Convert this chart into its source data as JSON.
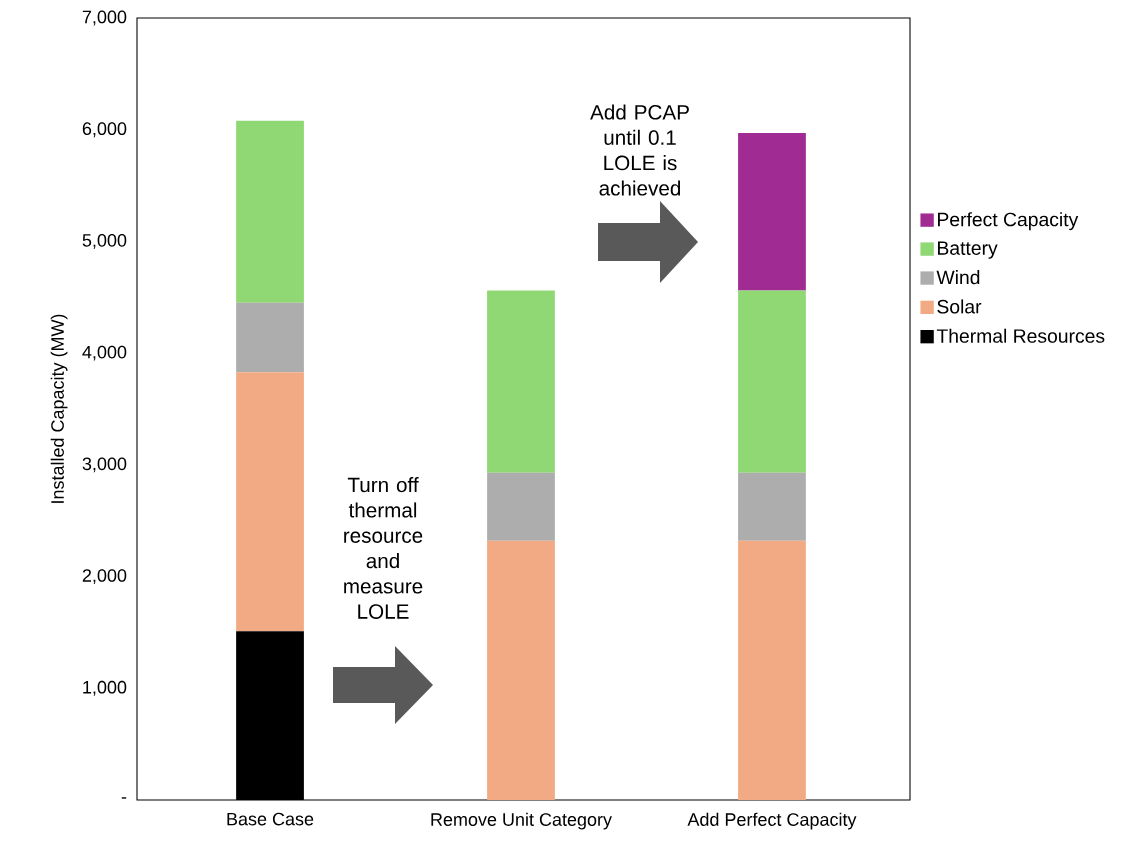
{
  "chart_data": {
    "type": "bar",
    "stacked": true,
    "ylabel": "Installed Capacity (MW)",
    "categories": [
      "Base Case",
      "Remove Unit Category",
      "Add Perfect Capacity"
    ],
    "series": [
      {
        "name": "Thermal Resources",
        "color": "#000000",
        "values": [
          1510,
          0,
          0
        ]
      },
      {
        "name": "Solar",
        "color": "#f2aa84",
        "values": [
          2320,
          2320,
          2320
        ]
      },
      {
        "name": "Wind",
        "color": "#adadad",
        "values": [
          620,
          610,
          610
        ]
      },
      {
        "name": "Battery",
        "color": "#8fd874",
        "values": [
          1630,
          1630,
          1630
        ]
      },
      {
        "name": "Perfect Capacity",
        "color": "#a02b93",
        "values": [
          0,
          0,
          1410
        ]
      }
    ],
    "ylim": [
      0,
      7000
    ],
    "yticks": [
      {
        "value": 0,
        "label": "-"
      },
      {
        "value": 1000,
        "label": "1,000"
      },
      {
        "value": 2000,
        "label": "2,000"
      },
      {
        "value": 3000,
        "label": "3,000"
      },
      {
        "value": 4000,
        "label": "4,000"
      },
      {
        "value": 5000,
        "label": "5,000"
      },
      {
        "value": 6000,
        "label": "6,000"
      },
      {
        "value": 7000,
        "label": "7,000"
      }
    ],
    "legend": "right",
    "grid": false,
    "annotations": [
      "Turn off thermal resource and measure LOLE",
      "Add PCAP until 0.1 LOLE is achieved"
    ]
  }
}
